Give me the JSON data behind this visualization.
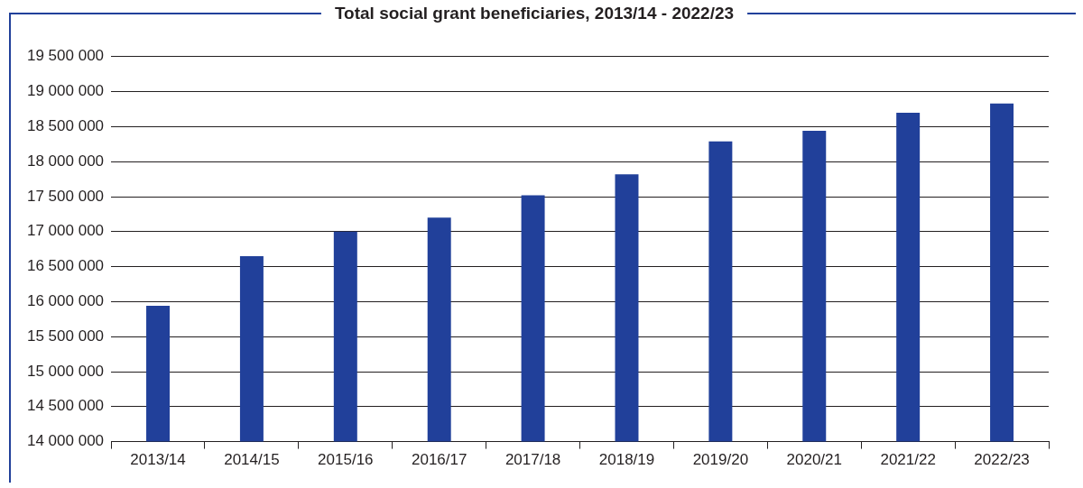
{
  "chart_data": {
    "type": "bar",
    "title": "Total social grant beneficiaries, 2013/14 - 2022/23",
    "categories": [
      "2013/14",
      "2014/15",
      "2015/16",
      "2016/17",
      "2017/18",
      "2018/19",
      "2019/20",
      "2020/21",
      "2021/22",
      "2022/23"
    ],
    "values": [
      15940000,
      16650000,
      17000000,
      17200000,
      17520000,
      17820000,
      18290000,
      18440000,
      18700000,
      18830000
    ],
    "color": "#21409a",
    "ylim": [
      14000000,
      19500000
    ],
    "yticks": [
      14000000,
      14500000,
      15000000,
      15500000,
      16000000,
      16500000,
      17000000,
      17500000,
      18000000,
      18500000,
      19000000,
      19500000
    ],
    "grid": "y",
    "legend": false
  }
}
